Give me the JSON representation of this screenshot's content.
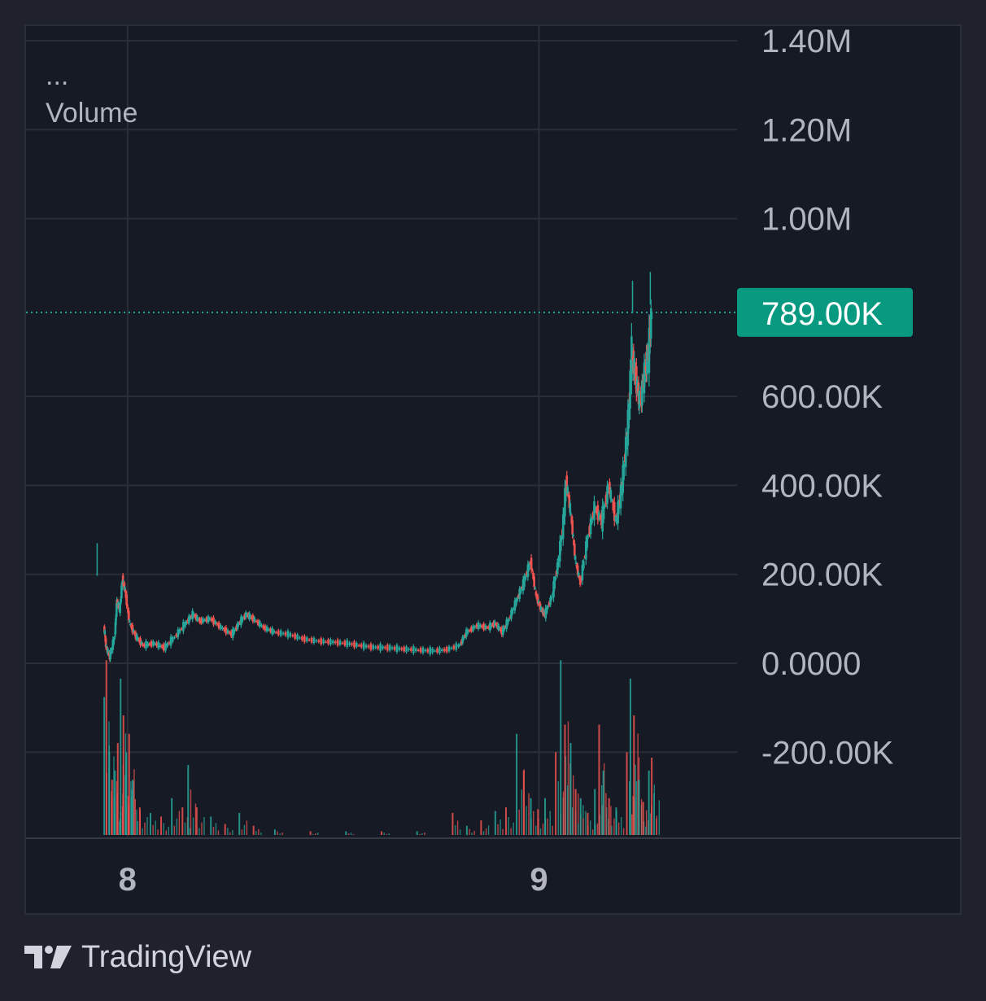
{
  "legend": {
    "menu": "...",
    "indicator": "Volume"
  },
  "brand": {
    "name": "TradingView"
  },
  "colors": {
    "background": "#161a25",
    "grid": "#2a2e39",
    "up": "#26a69a",
    "down": "#ef5350",
    "axis_text": "#b2b5be",
    "current_label_bg": "#089981"
  },
  "chart_data": {
    "type": "candlestick+volume",
    "y_ticks": [
      "1.40M",
      "1.20M",
      "1.00M",
      "600.00K",
      "400.00K",
      "200.00K",
      "0.0000",
      "-200.00K"
    ],
    "y_tick_values": [
      1400000,
      1200000,
      1000000,
      600000,
      400000,
      200000,
      0,
      -200000
    ],
    "ylim": [
      -390000,
      1400000
    ],
    "x_ticks": [
      "8",
      "9"
    ],
    "x_tick_positions": [
      0.1428,
      0.7214
    ],
    "current_value": 789000,
    "current_value_label": "789.00K",
    "grid": true,
    "price_path": [
      [
        0.11,
        80000
      ],
      [
        0.113,
        35000
      ],
      [
        0.118,
        15000
      ],
      [
        0.125,
        60000
      ],
      [
        0.128,
        140000
      ],
      [
        0.132,
        120000
      ],
      [
        0.136,
        190000
      ],
      [
        0.14,
        160000
      ],
      [
        0.146,
        90000
      ],
      [
        0.155,
        60000
      ],
      [
        0.165,
        40000
      ],
      [
        0.18,
        45000
      ],
      [
        0.195,
        35000
      ],
      [
        0.21,
        60000
      ],
      [
        0.225,
        90000
      ],
      [
        0.235,
        110000
      ],
      [
        0.245,
        95000
      ],
      [
        0.26,
        100000
      ],
      [
        0.275,
        80000
      ],
      [
        0.29,
        65000
      ],
      [
        0.3,
        90000
      ],
      [
        0.31,
        110000
      ],
      [
        0.32,
        100000
      ],
      [
        0.335,
        80000
      ],
      [
        0.35,
        70000
      ],
      [
        0.37,
        65000
      ],
      [
        0.39,
        55000
      ],
      [
        0.41,
        50000
      ],
      [
        0.43,
        48000
      ],
      [
        0.45,
        45000
      ],
      [
        0.47,
        40000
      ],
      [
        0.49,
        36000
      ],
      [
        0.51,
        35000
      ],
      [
        0.53,
        32000
      ],
      [
        0.55,
        30000
      ],
      [
        0.57,
        28000
      ],
      [
        0.59,
        30000
      ],
      [
        0.61,
        40000
      ],
      [
        0.62,
        70000
      ],
      [
        0.635,
        85000
      ],
      [
        0.65,
        80000
      ],
      [
        0.66,
        90000
      ],
      [
        0.67,
        70000
      ],
      [
        0.68,
        100000
      ],
      [
        0.69,
        140000
      ],
      [
        0.7,
        180000
      ],
      [
        0.71,
        230000
      ],
      [
        0.718,
        150000
      ],
      [
        0.725,
        120000
      ],
      [
        0.73,
        110000
      ],
      [
        0.74,
        150000
      ],
      [
        0.748,
        220000
      ],
      [
        0.755,
        300000
      ],
      [
        0.76,
        410000
      ],
      [
        0.767,
        330000
      ],
      [
        0.773,
        230000
      ],
      [
        0.78,
        180000
      ],
      [
        0.79,
        280000
      ],
      [
        0.8,
        350000
      ],
      [
        0.81,
        320000
      ],
      [
        0.82,
        400000
      ],
      [
        0.83,
        320000
      ],
      [
        0.836,
        370000
      ],
      [
        0.842,
        450000
      ],
      [
        0.848,
        560000
      ],
      [
        0.852,
        700000
      ],
      [
        0.858,
        640000
      ],
      [
        0.864,
        580000
      ],
      [
        0.87,
        650000
      ],
      [
        0.876,
        700000
      ],
      [
        0.88,
        789000
      ]
    ],
    "volume_bars": [
      [
        0.11,
        0.75
      ],
      [
        0.113,
        0.95
      ],
      [
        0.117,
        0.45
      ],
      [
        0.121,
        0.3
      ],
      [
        0.125,
        0.35
      ],
      [
        0.129,
        0.5
      ],
      [
        0.133,
        0.85
      ],
      [
        0.137,
        0.65
      ],
      [
        0.141,
        0.45
      ],
      [
        0.145,
        0.55
      ],
      [
        0.15,
        0.3
      ],
      [
        0.16,
        0.15
      ],
      [
        0.175,
        0.12
      ],
      [
        0.19,
        0.1
      ],
      [
        0.205,
        0.2
      ],
      [
        0.22,
        0.15
      ],
      [
        0.228,
        0.38
      ],
      [
        0.24,
        0.15
      ],
      [
        0.26,
        0.1
      ],
      [
        0.28,
        0.06
      ],
      [
        0.3,
        0.12
      ],
      [
        0.32,
        0.05
      ],
      [
        0.35,
        0.03
      ],
      [
        0.4,
        0.02
      ],
      [
        0.45,
        0.02
      ],
      [
        0.5,
        0.02
      ],
      [
        0.55,
        0.02
      ],
      [
        0.6,
        0.12
      ],
      [
        0.62,
        0.05
      ],
      [
        0.64,
        0.08
      ],
      [
        0.66,
        0.13
      ],
      [
        0.675,
        0.15
      ],
      [
        0.69,
        0.55
      ],
      [
        0.7,
        0.35
      ],
      [
        0.71,
        0.2
      ],
      [
        0.72,
        0.14
      ],
      [
        0.73,
        0.2
      ],
      [
        0.745,
        0.45
      ],
      [
        0.752,
        0.95
      ],
      [
        0.758,
        0.6
      ],
      [
        0.766,
        0.5
      ],
      [
        0.773,
        0.25
      ],
      [
        0.78,
        0.2
      ],
      [
        0.79,
        0.12
      ],
      [
        0.8,
        0.25
      ],
      [
        0.806,
        0.6
      ],
      [
        0.812,
        0.35
      ],
      [
        0.82,
        0.2
      ],
      [
        0.83,
        0.15
      ],
      [
        0.845,
        0.45
      ],
      [
        0.85,
        0.85
      ],
      [
        0.855,
        0.65
      ],
      [
        0.862,
        0.3
      ],
      [
        0.868,
        0.18
      ],
      [
        0.876,
        0.35
      ],
      [
        0.88,
        0.42
      ]
    ]
  }
}
